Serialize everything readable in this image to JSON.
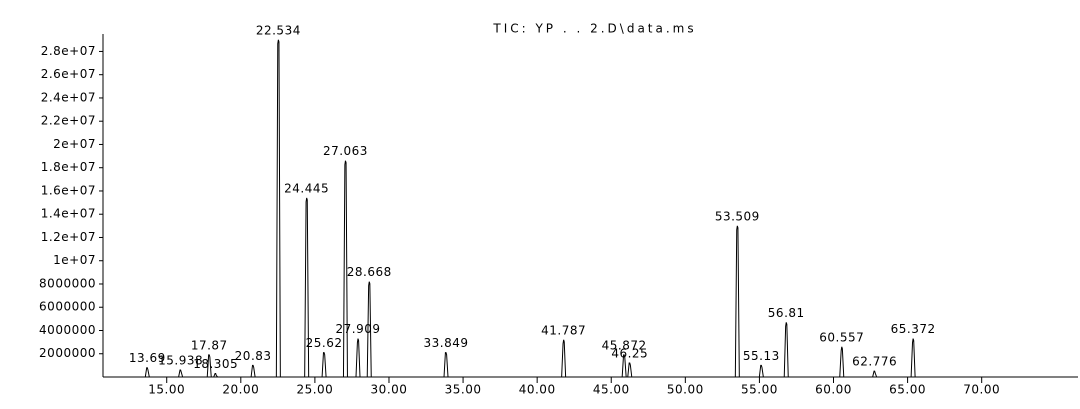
{
  "chart_data": {
    "type": "peaks",
    "title": "TIC: YP . . 2.D\\data.ms",
    "x": [
      13.69,
      15.938,
      17.87,
      18.305,
      20.83,
      22.534,
      24.445,
      25.62,
      27.063,
      27.909,
      28.668,
      33.849,
      41.787,
      45.872,
      46.25,
      53.509,
      55.13,
      56.81,
      60.557,
      62.776,
      65.372
    ],
    "values": [
      800000,
      600000,
      1900000,
      300000,
      1000000,
      29000000,
      15400000,
      2100000,
      18600000,
      3300000,
      8200000,
      2100000,
      3200000,
      1900000,
      1200000,
      13000000,
      1000000,
      4700000,
      2600000,
      500000,
      3300000
    ],
    "color": "#000000",
    "xlim": [
      10.7,
      76.5
    ],
    "ylim": [
      0,
      29500000
    ],
    "xticks": [
      {
        "value": 15,
        "label": "15.00"
      },
      {
        "value": 20,
        "label": "20.00"
      },
      {
        "value": 25,
        "label": "25.00"
      },
      {
        "value": 30,
        "label": "30.00"
      },
      {
        "value": 35,
        "label": "35.00"
      },
      {
        "value": 40,
        "label": "40.00"
      },
      {
        "value": 45,
        "label": "45.00"
      },
      {
        "value": 50,
        "label": "50.00"
      },
      {
        "value": 55,
        "label": "55.00"
      },
      {
        "value": 60,
        "label": "60.00"
      },
      {
        "value": 65,
        "label": "65.00"
      },
      {
        "value": 70,
        "label": "70.00"
      }
    ],
    "yticks": [
      2000000,
      4000000,
      6000000,
      8000000,
      {
        "value": 10000000,
        "label": "1e+07"
      },
      {
        "value": 12000000,
        "label": "1.2e+07"
      },
      {
        "value": 14000000,
        "label": "1.4e+07"
      },
      {
        "value": 16000000,
        "label": "1.6e+07"
      },
      {
        "value": 18000000,
        "label": "1.8e+07"
      },
      {
        "value": 20000000,
        "label": "2e+07"
      },
      {
        "value": 22000000,
        "label": "2.2e+07"
      },
      {
        "value": 24000000,
        "label": "2.4e+07"
      },
      {
        "value": 26000000,
        "label": "2.6e+07"
      },
      {
        "value": 28000000,
        "label": "2.8e+07"
      }
    ]
  }
}
